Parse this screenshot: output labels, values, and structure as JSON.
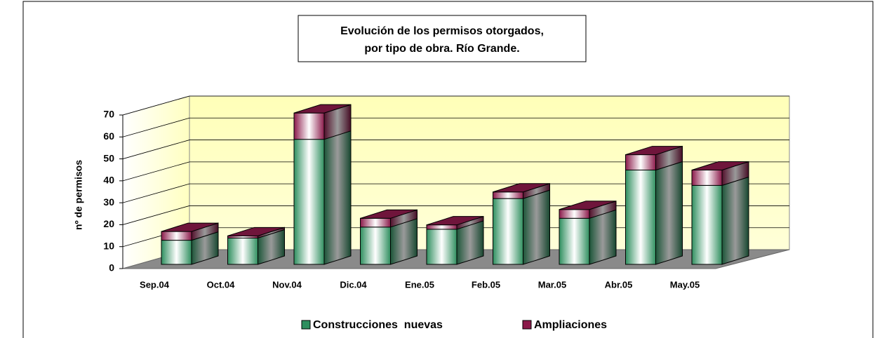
{
  "chart_data": {
    "type": "bar3d_stacked",
    "title": [
      "Evolución de los permisos otorgados,",
      "por tipo de obra. Río Grande."
    ],
    "y_label": "nº de permisos",
    "categories": [
      "Sep.04",
      "Oct.04",
      "Nov.04",
      "Dic.04",
      "Ene.05",
      "Feb.05",
      "Mar.05",
      "Abr.05",
      "May.05"
    ],
    "series": [
      {
        "name": "Construcciones  nuevas",
        "color": "#2f8f5f",
        "values": [
          11,
          12,
          57,
          17,
          16,
          30,
          21,
          43,
          36
        ]
      },
      {
        "name": "Ampliaciones",
        "color": "#8b1a4a",
        "values": [
          4,
          1,
          12,
          4,
          2,
          3,
          4,
          7,
          7
        ]
      }
    ],
    "ylim": [
      0,
      70
    ],
    "yticks": [
      0,
      10,
      20,
      30,
      40,
      50,
      60,
      70
    ],
    "grid": true
  }
}
